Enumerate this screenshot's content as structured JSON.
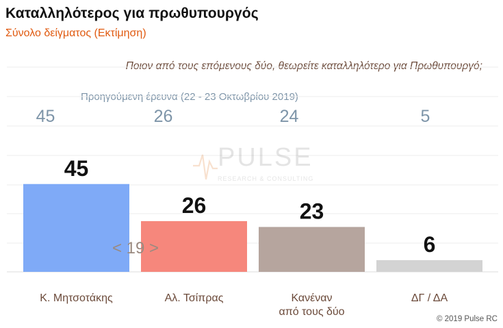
{
  "title": "Καταλληλότερος για πρωθυπουργός",
  "subtitle": "Σύνολο δείγματος   (Εκτίμηση)",
  "question": "Ποιον από τους επόμενους δύο, θεωρείτε καταλληλότερο για Πρωθυπουργό;",
  "previous_survey_label": "Προηγούμενη έρευνα  (22 - 23  Οκτωβρίου  2019)",
  "difference_label": "< 19 >",
  "copyright": "© 2019 Pulse RC",
  "watermark": {
    "name": "PULSE",
    "tagline": "RESEARCH & CONSULTING"
  },
  "colors": {
    "mitsotakis": "#7faaf7",
    "tsipras": "#f6877c",
    "neither": "#b6a59e",
    "dk": "#d3d3d3",
    "subtitle": "#e05a10",
    "previous": "#7d94a8"
  },
  "chart_data": {
    "type": "bar",
    "title": "Καταλληλότερος για πρωθυπουργός",
    "categories": [
      [
        "Κ. Μητσοτάκης"
      ],
      [
        "Αλ. Τσίπρας"
      ],
      [
        "Κανέναν",
        "από τους δύο"
      ],
      [
        "ΔΓ / ΔΑ"
      ]
    ],
    "values": [
      45,
      26,
      23,
      6
    ],
    "previous_values": [
      45,
      26,
      24,
      5
    ],
    "ylim": [
      0,
      75
    ],
    "grid": true,
    "colors": [
      "#7faaf7",
      "#f6877c",
      "#b6a59e",
      "#d3d3d3"
    ]
  }
}
